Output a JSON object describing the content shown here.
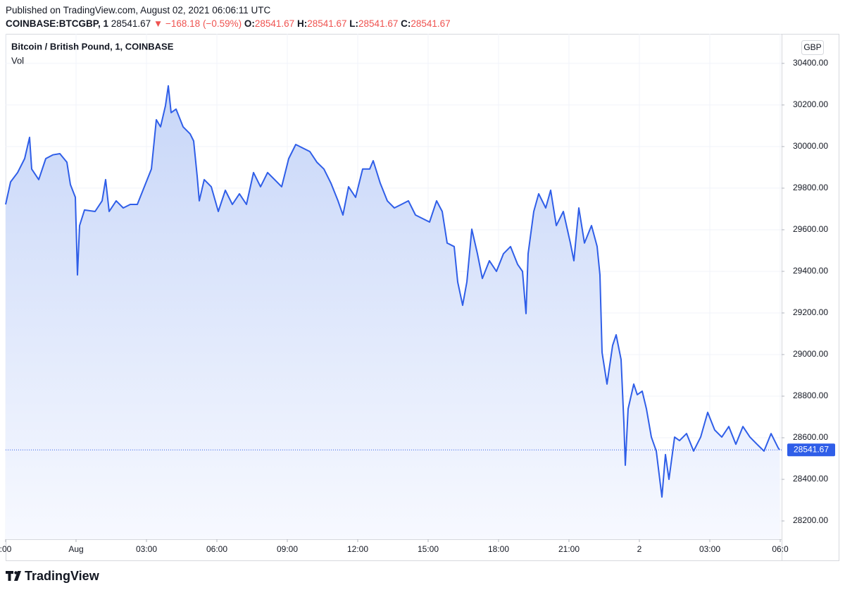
{
  "header": {
    "published": "Published on TradingView.com, August 02, 2021 06:06:11 UTC",
    "symbol": "COINBASE:BTCGBP, 1",
    "price": "28541.67",
    "arrow": "▼",
    "change": "−168.18 (−0.59%)",
    "ohlc": [
      {
        "label": "O:",
        "value": "28541.67"
      },
      {
        "label": "H:",
        "value": "28541.67"
      },
      {
        "label": "L:",
        "value": "28541.67"
      },
      {
        "label": "C:",
        "value": "28541.67"
      }
    ]
  },
  "chart_data": {
    "type": "area",
    "title": "Bitcoin / British Pound, 1, COINBASE",
    "volume_label": "Vol",
    "y_unit": "GBP",
    "color": "#2f5ee8",
    "x": [
      -3,
      -2.79,
      -2.49,
      -2.19,
      -1.98,
      -1.89,
      -1.59,
      -1.29,
      -0.99,
      -0.69,
      -0.39,
      -0.24,
      -0.03,
      0.06,
      0.15,
      0.36,
      0.81,
      1.11,
      1.26,
      1.41,
      1.71,
      2.01,
      2.31,
      2.61,
      2.91,
      3.21,
      3.42,
      3.6,
      3.81,
      3.93,
      4.05,
      4.26,
      4.56,
      4.86,
      5.01,
      5.16,
      5.25,
      5.46,
      5.76,
      6.06,
      6.36,
      6.66,
      6.96,
      7.26,
      7.56,
      7.86,
      8.16,
      8.46,
      8.76,
      9.06,
      9.36,
      9.66,
      9.96,
      10.26,
      10.56,
      10.86,
      11.16,
      11.37,
      11.61,
      11.91,
      12.21,
      12.51,
      12.66,
      12.96,
      13.26,
      13.56,
      13.86,
      14.16,
      14.46,
      14.76,
      15.06,
      15.36,
      15.6,
      15.81,
      16.11,
      16.26,
      16.47,
      16.65,
      16.86,
      17.1,
      17.31,
      17.61,
      17.91,
      18.21,
      18.51,
      18.81,
      19.02,
      19.17,
      19.26,
      19.5,
      19.71,
      20.01,
      20.22,
      20.46,
      20.76,
      21.06,
      21.21,
      21.42,
      21.66,
      21.96,
      22.2,
      22.32,
      22.41,
      22.62,
      22.86,
      23.01,
      23.22,
      23.34,
      23.4,
      23.52,
      23.76,
      23.91,
      24.12,
      24.3,
      24.51,
      24.72,
      24.96,
      25.11,
      25.26,
      25.5,
      25.71,
      26.01,
      26.31,
      26.61,
      26.91,
      27.21,
      27.51,
      27.81,
      28.11,
      28.41,
      28.71,
      29.01,
      29.31,
      29.61,
      29.91,
      29.97
    ],
    "values": [
      29722,
      29830,
      29875,
      29942,
      30044,
      29892,
      29841,
      29942,
      29960,
      29966,
      29925,
      29817,
      29756,
      29383,
      29620,
      29695,
      29688,
      29739,
      29841,
      29688,
      29739,
      29705,
      29722,
      29722,
      29807,
      29892,
      30129,
      30095,
      30197,
      30292,
      30163,
      30180,
      30095,
      30061,
      30027,
      29858,
      29739,
      29841,
      29807,
      29688,
      29790,
      29722,
      29773,
      29722,
      29875,
      29807,
      29875,
      29841,
      29807,
      29942,
      30010,
      29993,
      29976,
      29925,
      29892,
      29824,
      29739,
      29671,
      29807,
      29756,
      29892,
      29892,
      29932,
      29824,
      29739,
      29705,
      29722,
      29739,
      29671,
      29654,
      29637,
      29739,
      29688,
      29536,
      29519,
      29349,
      29237,
      29349,
      29603,
      29485,
      29366,
      29451,
      29400,
      29485,
      29519,
      29434,
      29400,
      29197,
      29485,
      29688,
      29773,
      29705,
      29790,
      29620,
      29688,
      29536,
      29451,
      29705,
      29536,
      29620,
      29519,
      29383,
      29010,
      28858,
      29044,
      29095,
      28976,
      28671,
      28468,
      28739,
      28858,
      28807,
      28824,
      28739,
      28603,
      28536,
      28315,
      28519,
      28400,
      28603,
      28586,
      28620,
      28536,
      28603,
      28722,
      28637,
      28603,
      28654,
      28569,
      28654,
      28603,
      28569,
      28536,
      28620,
      28552,
      28541.67
    ],
    "xlim": [
      -3,
      30.06
    ],
    "ylim": [
      28112,
      30542
    ],
    "xticks": [
      {
        "value": -3,
        "label": ":00"
      },
      {
        "value": 0,
        "label": "Aug"
      },
      {
        "value": 3,
        "label": "03:00"
      },
      {
        "value": 6,
        "label": "06:00"
      },
      {
        "value": 9,
        "label": "09:00"
      },
      {
        "value": 12,
        "label": "12:00"
      },
      {
        "value": 15,
        "label": "15:00"
      },
      {
        "value": 18,
        "label": "18:00"
      },
      {
        "value": 21,
        "label": "21:00"
      },
      {
        "value": 24,
        "label": "2"
      },
      {
        "value": 27,
        "label": "03:00"
      },
      {
        "value": 30,
        "label": "06:0"
      }
    ],
    "yticks": [
      {
        "value": 28200,
        "label": "28200.00"
      },
      {
        "value": 28400,
        "label": "28400.00"
      },
      {
        "value": 28600,
        "label": "28600.00"
      },
      {
        "value": 28800,
        "label": "28800.00"
      },
      {
        "value": 29000,
        "label": "29000.00"
      },
      {
        "value": 29200,
        "label": "29200.00"
      },
      {
        "value": 29400,
        "label": "29400.00"
      },
      {
        "value": 29600,
        "label": "29600.00"
      },
      {
        "value": 29800,
        "label": "29800.00"
      },
      {
        "value": 30000,
        "label": "30000.00"
      },
      {
        "value": 30200,
        "label": "30200.00"
      },
      {
        "value": 30400,
        "label": "30400.00"
      }
    ],
    "grid": true
  },
  "footer": {
    "logo": "TradingView"
  }
}
